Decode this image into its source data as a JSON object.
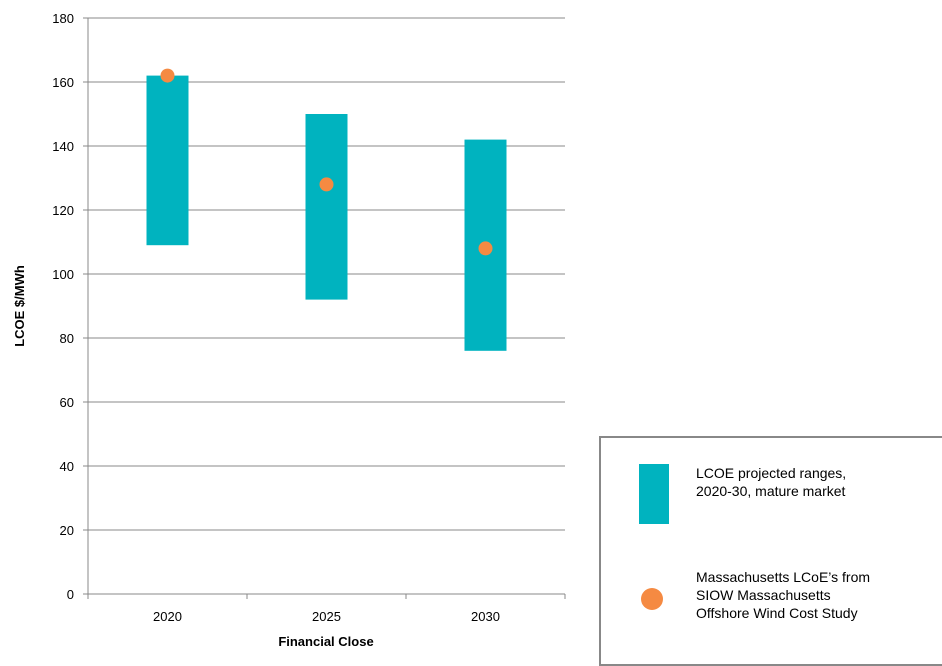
{
  "chart_data": {
    "type": "bar",
    "categories": [
      "2020",
      "2025",
      "2030"
    ],
    "xlabel": "Financial Close",
    "ylabel": "LCOE $/MWh",
    "ylim": [
      0,
      180
    ],
    "yticks": [
      0,
      20,
      40,
      60,
      80,
      100,
      120,
      140,
      160,
      180
    ],
    "grid": true,
    "legend_placement": "bottom-right",
    "series": [
      {
        "name": "LCOE projected ranges, 2020-30, mature market",
        "kind": "floating-range",
        "color": "#00B3BF",
        "low": [
          109,
          92,
          76
        ],
        "high": [
          162,
          150,
          142
        ]
      },
      {
        "name": "Massachusetts LCoE’s from SIOW Massachusetts Offshore Wind Cost Study",
        "kind": "point",
        "color": "#F58A42",
        "values": [
          162,
          128,
          108
        ]
      }
    ]
  },
  "legend": {
    "range_label": "LCOE projected ranges,\n2020-30, mature market",
    "point_label": "Massachusetts LCoE’s from\nSIOW Massachusetts\nOffshore Wind Cost Study"
  }
}
